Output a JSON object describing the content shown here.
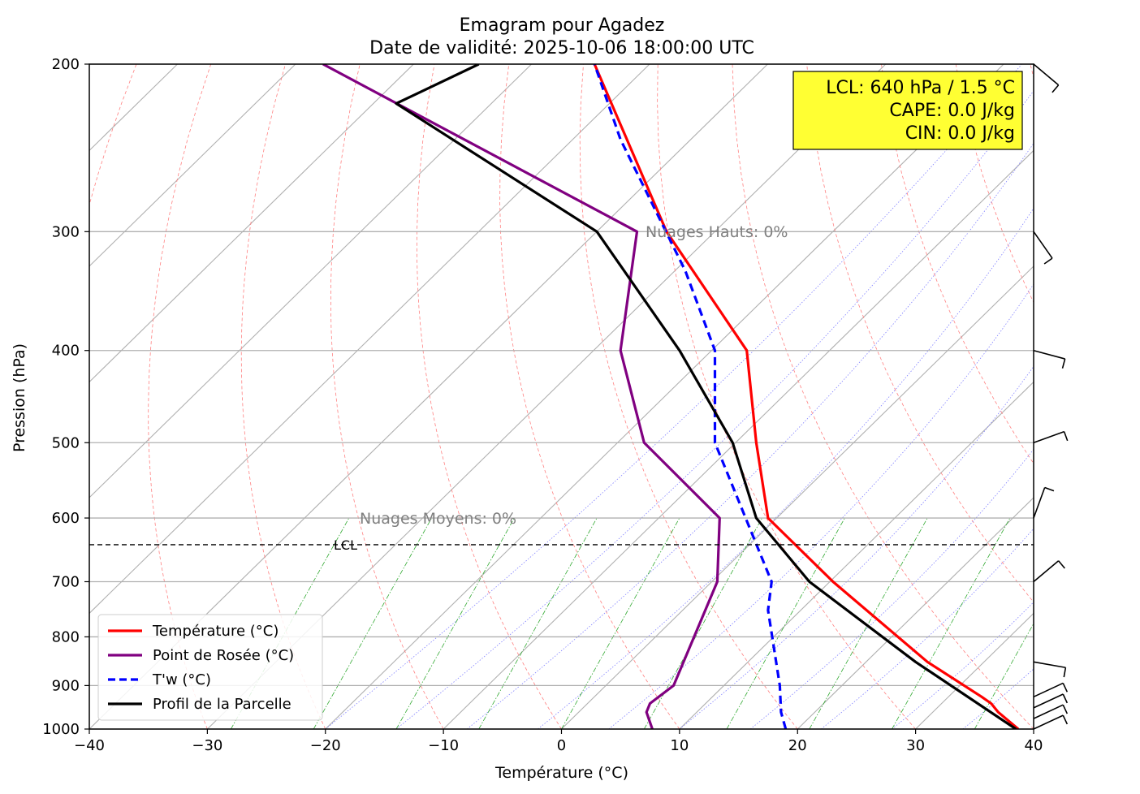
{
  "chart_data": {
    "type": "line",
    "title": "Emagram pour Agadez",
    "subtitle": "Date de validité: 2025-10-06 18:00:00 UTC",
    "xlabel": "Température (°C)",
    "ylabel": "Pression (hPa)",
    "xlim": [
      -40,
      40
    ],
    "ylim": [
      1000,
      200
    ],
    "y_scale": "log",
    "x_ticks": [
      -40,
      -30,
      -20,
      -10,
      0,
      10,
      20,
      30,
      40
    ],
    "x_tick_labels": [
      "−40",
      "−30",
      "−20",
      "−10",
      "0",
      "10",
      "20",
      "30",
      "40"
    ],
    "y_ticks": [
      1000,
      900,
      800,
      700,
      600,
      500,
      400,
      300,
      200
    ],
    "y_tick_labels": [
      "1000",
      "900",
      "800",
      "700",
      "600",
      "500",
      "400",
      "300",
      "200"
    ],
    "grid": true,
    "legend_position": "lower-left",
    "series": [
      {
        "name": "Température (°C)",
        "color": "#ff0000",
        "style": "solid",
        "points": [
          [
            38.7,
            1000
          ],
          [
            37.0,
            960
          ],
          [
            36.4,
            940
          ],
          [
            35.6,
            925
          ],
          [
            31.0,
            850
          ],
          [
            23.0,
            700
          ],
          [
            17.5,
            600
          ],
          [
            16.5,
            500
          ],
          [
            15.7,
            400
          ],
          [
            8.9,
            300
          ],
          [
            2.8,
            200
          ]
        ]
      },
      {
        "name": "Point de Rosée (°C)",
        "color": "#800080",
        "style": "solid",
        "points": [
          [
            7.7,
            1000
          ],
          [
            7.2,
            960
          ],
          [
            7.5,
            940
          ],
          [
            9.5,
            900
          ],
          [
            13.2,
            700
          ],
          [
            13.4,
            600
          ],
          [
            7.0,
            500
          ],
          [
            5.0,
            400
          ],
          [
            6.4,
            300
          ],
          [
            -20.2,
            200
          ]
        ]
      },
      {
        "name": "T'w (°C)",
        "color": "#0000ff",
        "style": "dashed",
        "points": [
          [
            19.0,
            1000
          ],
          [
            18.6,
            960
          ],
          [
            18.5,
            900
          ],
          [
            17.5,
            750
          ],
          [
            17.8,
            700
          ],
          [
            15.6,
            600
          ],
          [
            13.0,
            500
          ],
          [
            13.0,
            450
          ],
          [
            13.0,
            400
          ],
          [
            10.5,
            330
          ],
          [
            5.0,
            240
          ],
          [
            2.8,
            200
          ]
        ]
      },
      {
        "name": "Profil de la Parcelle",
        "color": "#000000",
        "style": "solid",
        "points": [
          [
            38.5,
            1000
          ],
          [
            30.0,
            850
          ],
          [
            21.0,
            700
          ],
          [
            16.5,
            600
          ],
          [
            14.5,
            500
          ],
          [
            10.0,
            400
          ],
          [
            3.0,
            300
          ],
          [
            -14.0,
            220
          ],
          [
            -7.0,
            200
          ]
        ]
      }
    ],
    "lcl_line": {
      "pressure": 640,
      "label": "LCL"
    },
    "annotations": [
      {
        "text": "Nuages Hauts: 0%",
        "x": 7,
        "y": 300
      },
      {
        "text": "Nuages Moyens: 0%",
        "x": -17,
        "y": 600
      }
    ],
    "info_box": [
      "LCL: 640 hPa / 1.5 °C",
      "CAPE: 0.0 J/kg",
      "CIN: 0.0 J/kg"
    ],
    "info_box_color": "#ffff33",
    "background_line_colors": {
      "isotherms": "#b0b0b0",
      "dry_adiabats": "#ff8080",
      "moist_adiabats": "#8080ff",
      "mixing_ratio": "#33aa33"
    },
    "wind_barbs_levels": [
      1000,
      975,
      950,
      925,
      850,
      700,
      600,
      500,
      400,
      300,
      200
    ]
  }
}
